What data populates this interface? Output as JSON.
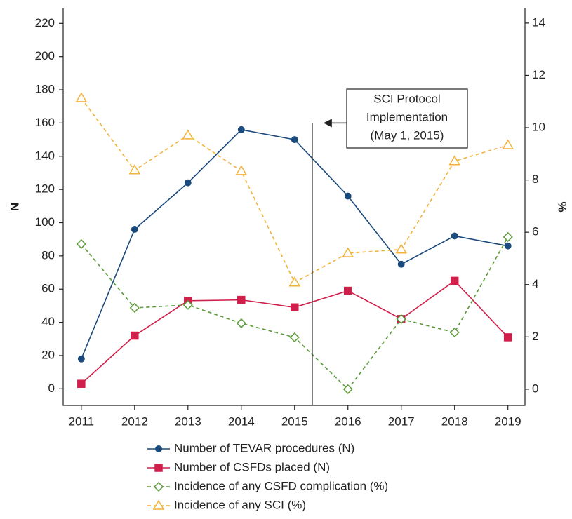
{
  "chart_data": {
    "type": "line",
    "y_label": "N",
    "y2_label": "%",
    "x": [
      2011,
      2012,
      2013,
      2014,
      2015,
      2016,
      2017,
      2018,
      2019
    ],
    "xlim": [
      2010.66,
      2019.32
    ],
    "xticks": [
      2011,
      2012,
      2013,
      2014,
      2015,
      2016,
      2017,
      2018,
      2019
    ],
    "ylim": [
      -10,
      229
    ],
    "yticks": [
      0,
      20,
      40,
      60,
      80,
      100,
      120,
      140,
      160,
      180,
      200,
      220
    ],
    "y2lim": [
      -0.62,
      14.56
    ],
    "y2ticks": [
      0,
      2,
      4,
      6,
      8,
      10,
      12,
      14
    ],
    "series": [
      {
        "name": "Number of TEVAR procedures (N)",
        "color": "#1b4a7c",
        "marker": "circle",
        "line_style": "solid",
        "values": [
          18,
          96,
          124,
          156,
          150,
          116,
          75,
          92,
          86
        ]
      },
      {
        "name": "Number of CSFDs placed (N)",
        "color": "#cf1f4a",
        "marker": "square",
        "line_style": "solid",
        "values": [
          3,
          32,
          53,
          53.5,
          49,
          59,
          42,
          65,
          31
        ]
      },
      {
        "name": "Incidence of any CSFD complication (%)",
        "color": "#5b9b3a",
        "marker": "diamond",
        "line_style": "dashed",
        "axis": "y2",
        "values": [
          5.55,
          3.11,
          3.22,
          2.52,
          1.98,
          0,
          2.68,
          2.17,
          5.82
        ]
      },
      {
        "name": "Incidence of any SCI (%)",
        "color": "#f4b23a",
        "marker": "triangle",
        "line_style": "dashed",
        "axis": "y2",
        "values": [
          11.13,
          8.37,
          9.71,
          8.34,
          4.08,
          5.2,
          5.34,
          8.72,
          9.33
        ]
      }
    ],
    "annotation": {
      "text": [
        "SCI Protocol",
        "Implementation",
        "(May 1, 2015)"
      ],
      "x": 2015.33,
      "arrow_y": 160
    }
  }
}
